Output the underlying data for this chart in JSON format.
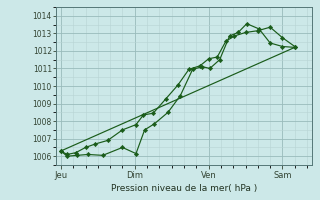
{
  "xlabel": "Pression niveau de la mer( hPa )",
  "ylim": [
    1005.5,
    1014.5
  ],
  "yticks": [
    1006,
    1007,
    1008,
    1009,
    1010,
    1011,
    1012,
    1013,
    1014
  ],
  "xtick_positions": [
    0,
    3,
    6,
    9
  ],
  "xtick_labels": [
    "Jeu",
    "Dim",
    "Ven",
    "Sam"
  ],
  "bg_color": "#cce8e8",
  "line_color": "#1a5c1a",
  "grid_color_major": "#99bbbb",
  "grid_color_minor": "#b8d4d4",
  "xlim": [
    -0.2,
    10.2
  ],
  "line1_x": [
    0,
    0.25,
    0.6,
    1.0,
    1.4,
    1.9,
    2.5,
    3.05,
    3.35,
    3.75,
    4.25,
    4.75,
    5.2,
    5.65,
    6.0,
    6.35,
    6.7,
    7.05,
    7.5,
    8.0,
    8.5,
    9.0,
    9.5
  ],
  "line1_y": [
    1006.3,
    1006.1,
    1006.2,
    1006.5,
    1006.7,
    1006.9,
    1007.5,
    1007.8,
    1008.35,
    1008.45,
    1009.25,
    1010.05,
    1010.95,
    1011.15,
    1011.55,
    1011.65,
    1012.55,
    1012.85,
    1013.05,
    1013.15,
    1013.35,
    1012.75,
    1012.25
  ],
  "line2_x": [
    0,
    0.25,
    0.65,
    1.1,
    1.7,
    2.5,
    3.05,
    3.4,
    3.8,
    4.35,
    4.85,
    5.35,
    5.75,
    6.05,
    6.45,
    6.85,
    7.2,
    7.55,
    8.05,
    8.5,
    9.0,
    9.5
  ],
  "line2_y": [
    1006.3,
    1006.0,
    1006.05,
    1006.1,
    1006.05,
    1006.5,
    1006.15,
    1007.5,
    1007.85,
    1008.5,
    1009.45,
    1010.95,
    1011.1,
    1011.0,
    1011.5,
    1012.85,
    1013.05,
    1013.55,
    1013.25,
    1012.45,
    1012.25,
    1012.2
  ],
  "line3_x": [
    0,
    9.5
  ],
  "line3_y": [
    1006.3,
    1012.2
  ]
}
